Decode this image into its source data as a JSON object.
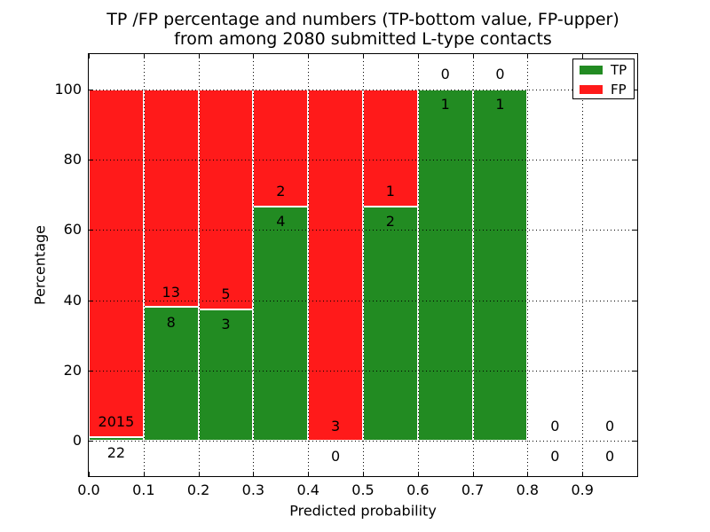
{
  "chart_data": {
    "type": "bar",
    "stacked": true,
    "title_lines": [
      "TP /FP percentage and numbers (TP-bottom value, FP-upper)",
      "from among 2080 submitted L-type contacts"
    ],
    "xlabel": "Predicted probability",
    "ylabel": "Percentage",
    "xlim": [
      0.0,
      1.0
    ],
    "ylim": [
      -10,
      110
    ],
    "xtick_labels": [
      "0.0",
      "0.1",
      "0.2",
      "0.3",
      "0.4",
      "0.5",
      "0.6",
      "0.7",
      "0.8",
      "0.9"
    ],
    "ytick_values": [
      0,
      20,
      40,
      60,
      80,
      100
    ],
    "grid": "dotted",
    "bar_edge_color": "#ffffff",
    "legend": {
      "position": "upper-right",
      "entries": [
        {
          "label": "TP",
          "color": "#228b22"
        },
        {
          "label": "FP",
          "color": "#ff1a1a"
        }
      ]
    },
    "categories": [
      "0.0-0.1",
      "0.1-0.2",
      "0.2-0.3",
      "0.3-0.4",
      "0.4-0.5",
      "0.5-0.6",
      "0.6-0.7",
      "0.7-0.8",
      "0.8-0.9",
      "0.9-1.0"
    ],
    "series": [
      {
        "name": "TP",
        "values": [
          22,
          8,
          3,
          4,
          0,
          2,
          1,
          1,
          0,
          0
        ]
      },
      {
        "name": "FP",
        "values": [
          2015,
          13,
          5,
          2,
          3,
          1,
          0,
          0,
          0,
          0
        ]
      }
    ],
    "bins": [
      {
        "range": "0.0-0.1",
        "tp": 22,
        "fp": 2015
      },
      {
        "range": "0.1-0.2",
        "tp": 8,
        "fp": 13
      },
      {
        "range": "0.2-0.3",
        "tp": 3,
        "fp": 5
      },
      {
        "range": "0.3-0.4",
        "tp": 4,
        "fp": 2
      },
      {
        "range": "0.4-0.5",
        "tp": 0,
        "fp": 3
      },
      {
        "range": "0.5-0.6",
        "tp": 2,
        "fp": 1
      },
      {
        "range": "0.6-0.7",
        "tp": 1,
        "fp": 0
      },
      {
        "range": "0.7-0.8",
        "tp": 1,
        "fp": 0
      },
      {
        "range": "0.8-0.9",
        "tp": 0,
        "fp": 0
      },
      {
        "range": "0.9-1.0",
        "tp": 0,
        "fp": 0
      }
    ]
  }
}
